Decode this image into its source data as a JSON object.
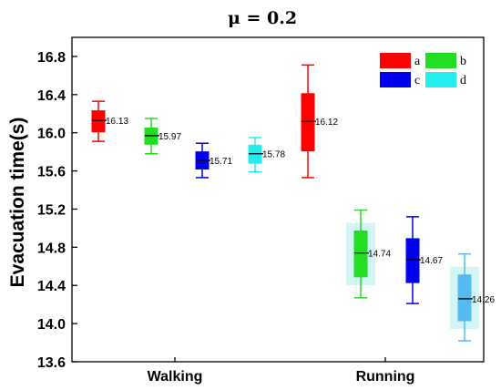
{
  "chart_data": {
    "type": "box",
    "title": "μ = 0.2",
    "ylabel": "Evacuation time(s)",
    "xlabel": "",
    "ylim": [
      13.6,
      17.0
    ],
    "yticks": [
      "13.6",
      "14.0",
      "14.4",
      "14.8",
      "15.2",
      "15.6",
      "16.0",
      "16.4",
      "16.8"
    ],
    "categories": [
      "Walking",
      "Running"
    ],
    "legend": {
      "position": "top-right",
      "entries": [
        "a",
        "b",
        "c",
        "d"
      ]
    },
    "colors": {
      "a": "#ff0000",
      "b": "#22dd22",
      "c": "#0000ee",
      "d": "#22eeee",
      "d_running": "#55bbee"
    },
    "grid": false,
    "boxes": [
      {
        "category": "Walking",
        "series": "a",
        "min": 15.91,
        "q1": 16.01,
        "median": 16.13,
        "q3": 16.23,
        "max": 16.33,
        "label": "16.13"
      },
      {
        "category": "Walking",
        "series": "b",
        "min": 15.78,
        "q1": 15.88,
        "median": 15.97,
        "q3": 16.05,
        "max": 16.15,
        "label": "15.97"
      },
      {
        "category": "Walking",
        "series": "c",
        "min": 15.53,
        "q1": 15.62,
        "median": 15.71,
        "q3": 15.8,
        "max": 15.89,
        "label": "15.71"
      },
      {
        "category": "Walking",
        "series": "d",
        "min": 15.59,
        "q1": 15.68,
        "median": 15.78,
        "q3": 15.87,
        "max": 15.95,
        "label": "15.78"
      },
      {
        "category": "Running",
        "series": "a",
        "min": 15.53,
        "q1": 15.81,
        "median": 16.12,
        "q3": 16.41,
        "max": 16.71,
        "label": "16.12"
      },
      {
        "category": "Running",
        "series": "b",
        "min": 14.27,
        "q1": 14.49,
        "median": 14.74,
        "q3": 14.97,
        "max": 15.19,
        "label": "14.74"
      },
      {
        "category": "Running",
        "series": "c",
        "min": 14.21,
        "q1": 14.43,
        "median": 14.67,
        "q3": 14.89,
        "max": 15.12,
        "label": "14.67"
      },
      {
        "category": "Running",
        "series": "d",
        "min": 13.82,
        "q1": 14.03,
        "median": 14.26,
        "q3": 14.51,
        "max": 14.73,
        "label": "14.26"
      }
    ]
  }
}
